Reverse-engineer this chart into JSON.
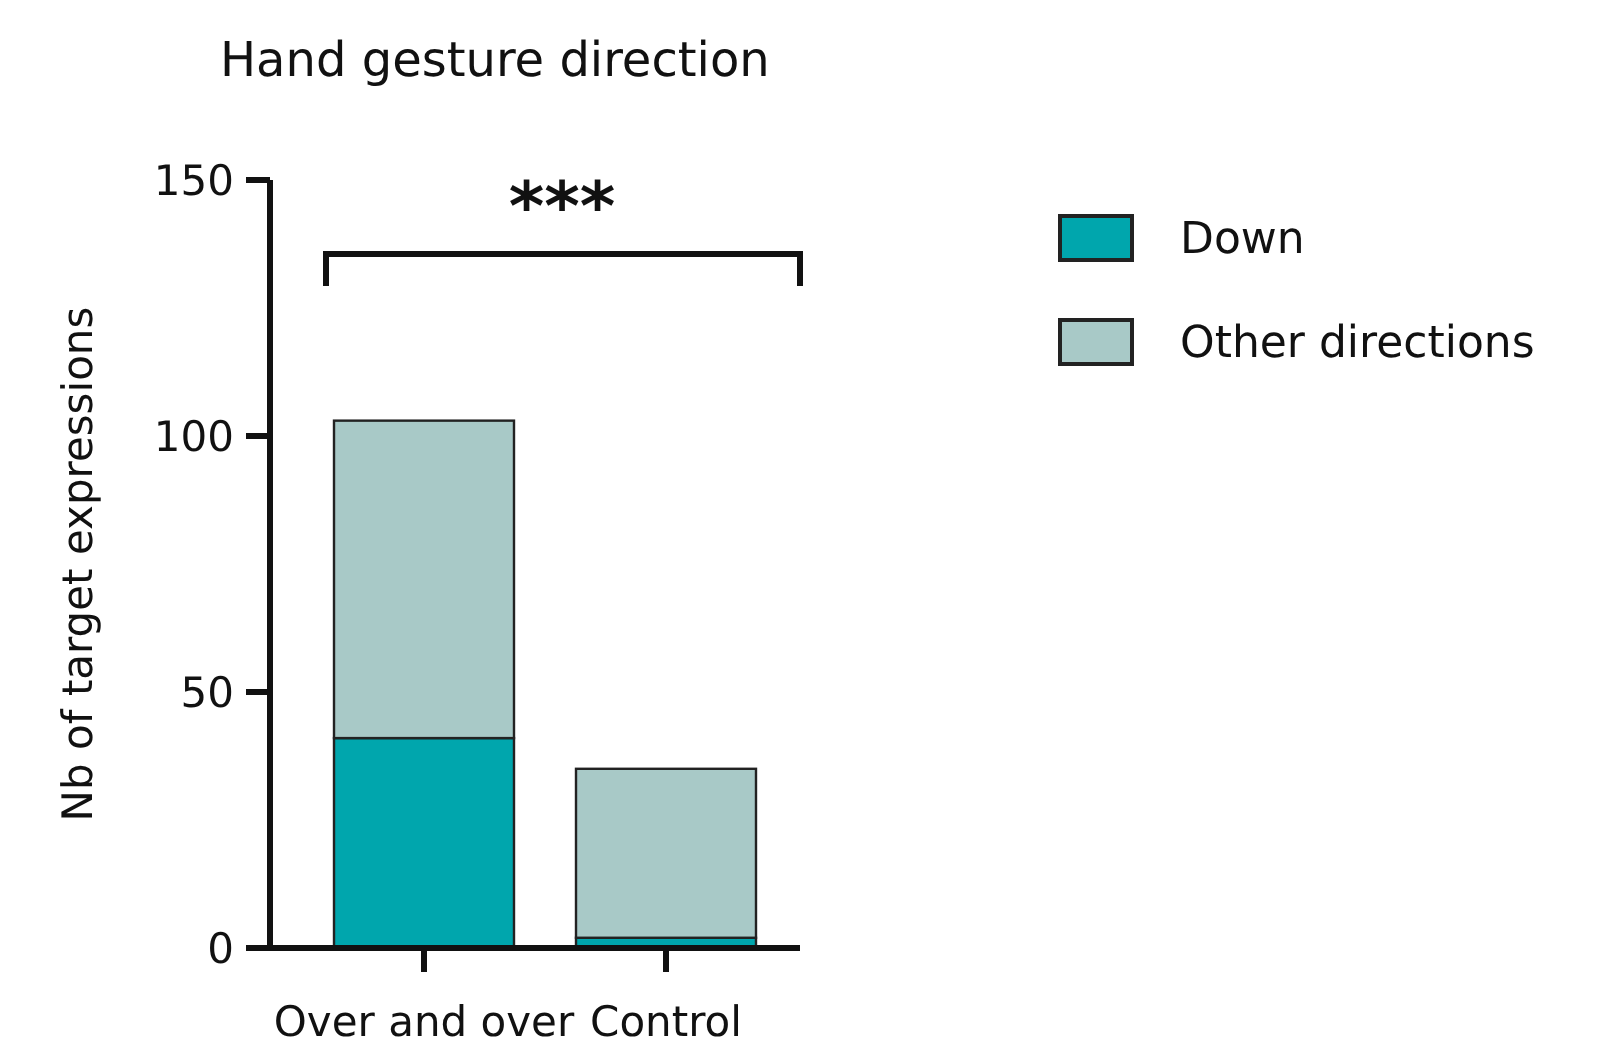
{
  "chart_data": {
    "type": "bar",
    "title": "Hand gesture direction",
    "ylabel": "Nb of target expressions",
    "categories": [
      "Over and over",
      "Control"
    ],
    "stacked": true,
    "series": [
      {
        "name": "Down",
        "color": "#00a6ad",
        "values": [
          41,
          2
        ]
      },
      {
        "name": "Other directions",
        "color": "#a8c9c7",
        "values": [
          62,
          33
        ]
      }
    ],
    "ylim": [
      0,
      150
    ],
    "yticks": [
      0,
      50,
      100,
      150
    ],
    "legend": "right",
    "annotations": [
      "***"
    ]
  }
}
